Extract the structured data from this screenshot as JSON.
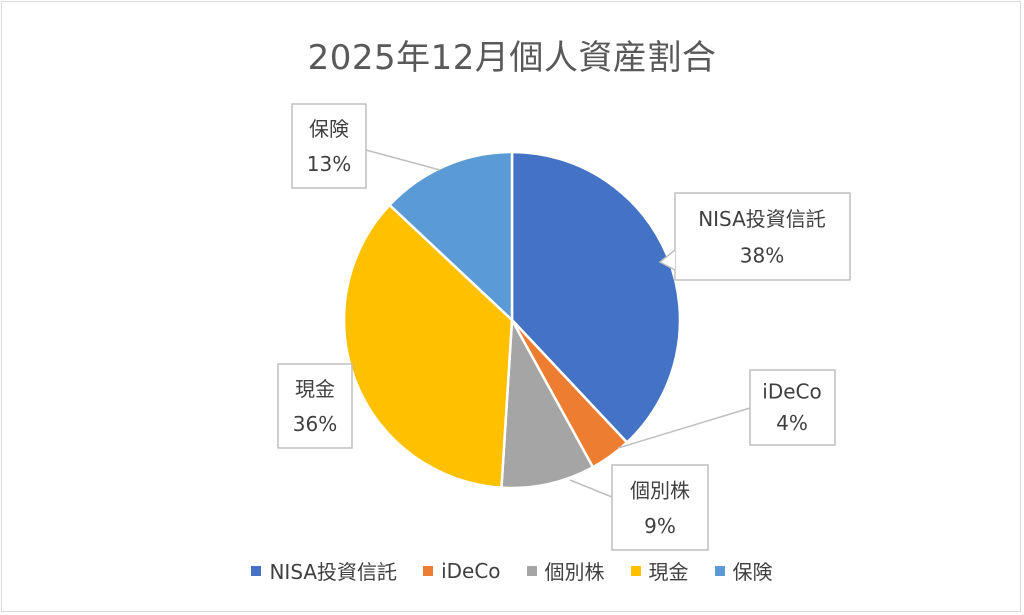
{
  "chart_data": {
    "type": "pie",
    "title": "2025年12月個人資産割合",
    "slices": [
      {
        "label": "NISA投資信託",
        "value": 38,
        "display": "38%",
        "color": "#4472c4"
      },
      {
        "label": "iDeCo",
        "value": 4,
        "display": "4%",
        "color": "#ed7d31"
      },
      {
        "label": "個別株",
        "value": 9,
        "display": "9%",
        "color": "#a5a5a5"
      },
      {
        "label": "現金",
        "value": 36,
        "display": "36%",
        "color": "#ffc000"
      },
      {
        "label": "保険",
        "value": 13,
        "display": "13%",
        "color": "#5b9bd5"
      }
    ],
    "legend_position": "bottom"
  }
}
